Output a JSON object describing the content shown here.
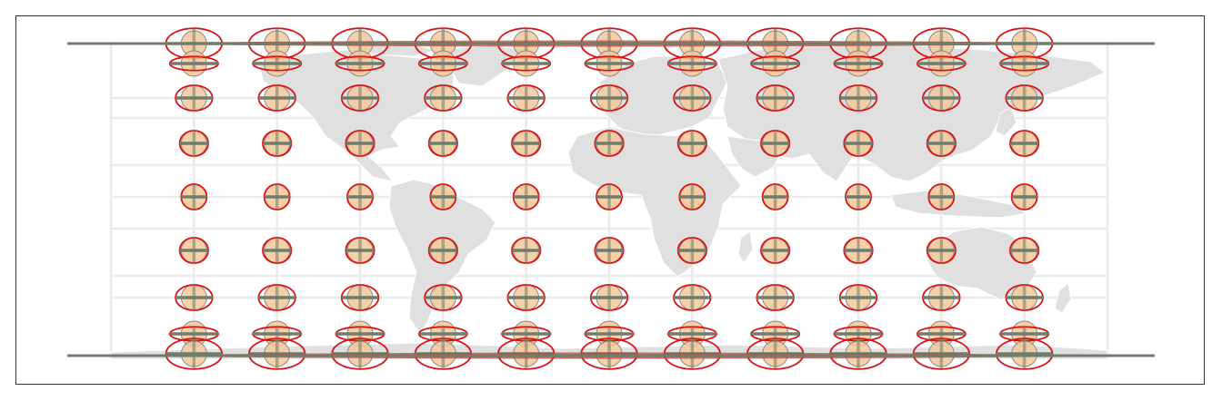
{
  "map": {
    "type": "tissot-indicatrix",
    "projection": "miller-cylindrical",
    "indicatrix_grid": {
      "longitudes": [
        -150,
        -120,
        -90,
        -60,
        -30,
        0,
        30,
        60,
        90,
        120,
        150
      ],
      "latitudes": [
        80,
        75,
        60,
        30,
        0,
        -30,
        -60,
        -75,
        -80
      ]
    },
    "graticule": {
      "longitudes": [
        -180,
        -150,
        -120,
        -90,
        -60,
        -30,
        0,
        30,
        60,
        90,
        120,
        150,
        180
      ],
      "latitudes": [
        -80,
        -60,
        -40,
        -20,
        0,
        20,
        40,
        60,
        80
      ]
    },
    "land_color": "#e0e0e0",
    "border_color": "#ffffff",
    "graticule_color": "#ebebeb",
    "circle_fill": "#f5c89a",
    "circle_stroke": "#8a8a8a",
    "ellipse_stroke": "#dd1111",
    "axis_bar_color": "#6e7d6e",
    "polar_band_color": "#b84a3a"
  }
}
